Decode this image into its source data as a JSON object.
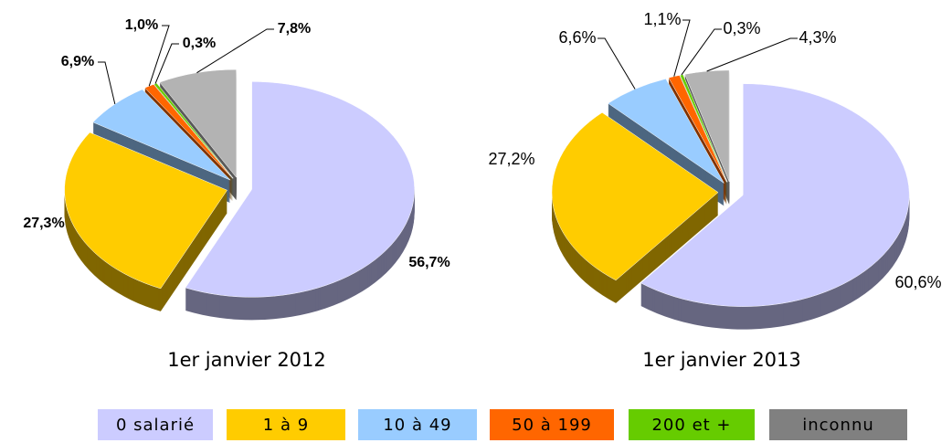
{
  "chart_data": [
    {
      "type": "pie",
      "title": "1er janvier 2012",
      "categories": [
        "0 salarié",
        "1 à 9",
        "10 à 49",
        "50 à 199",
        "200 et +",
        "inconnu"
      ],
      "values": [
        56.7,
        27.3,
        6.9,
        1.0,
        0.3,
        7.8
      ],
      "value_labels": [
        "56,7%",
        "27,3%",
        "6,9%",
        "1,0%",
        "0,3%",
        "7,8%"
      ],
      "colors": [
        "#ccccff",
        "#ffcc00",
        "#99ccff",
        "#ff6600",
        "#66cc00",
        "#b3b3b3"
      ]
    },
    {
      "type": "pie",
      "title": "1er janvier 2013",
      "categories": [
        "0 salarié",
        "1 à 9",
        "10 à 49",
        "50 à 199",
        "200 et +",
        "inconnu"
      ],
      "values": [
        60.6,
        27.2,
        6.6,
        1.1,
        0.3,
        4.3
      ],
      "value_labels": [
        "60,6%",
        "27,2%",
        "6,6%",
        "1,1%",
        "0,3%",
        "4,3%"
      ],
      "colors": [
        "#ccccff",
        "#ffcc00",
        "#99ccff",
        "#ff6600",
        "#66cc00",
        "#b3b3b3"
      ]
    }
  ]
}
